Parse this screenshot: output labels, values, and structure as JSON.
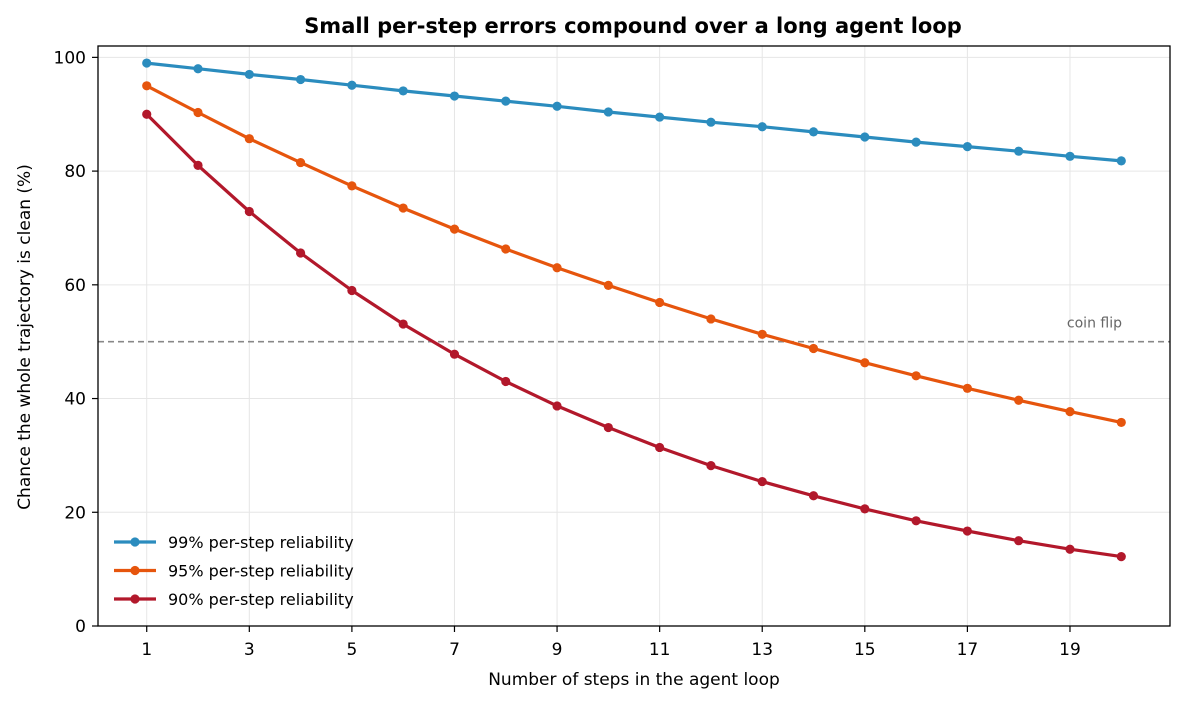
{
  "chart_data": {
    "type": "line",
    "title": "Small per-step errors compound over a long agent loop",
    "xlabel": "Number of steps in the agent loop",
    "ylabel": "Chance the whole trajectory is clean (%)",
    "xlim": [
      0.05,
      20.95
    ],
    "ylim": [
      0,
      102
    ],
    "xticks": [
      1,
      3,
      5,
      7,
      9,
      11,
      13,
      15,
      17,
      19
    ],
    "yticks": [
      0,
      20,
      40,
      60,
      80,
      100
    ],
    "grid": true,
    "legend_position": "lower-left",
    "x": [
      1,
      2,
      3,
      4,
      5,
      6,
      7,
      8,
      9,
      10,
      11,
      12,
      13,
      14,
      15,
      16,
      17,
      18,
      19,
      20
    ],
    "series": [
      {
        "name": "99% per-step reliability",
        "color": "#2b8cbe",
        "values": [
          99.0,
          98.0,
          97.0,
          96.1,
          95.1,
          94.1,
          93.2,
          92.3,
          91.4,
          90.4,
          89.5,
          88.6,
          87.8,
          86.9,
          86.0,
          85.1,
          84.3,
          83.5,
          82.6,
          81.8
        ]
      },
      {
        "name": "95% per-step reliability",
        "color": "#e6550d",
        "values": [
          95.0,
          90.3,
          85.7,
          81.5,
          77.4,
          73.5,
          69.8,
          66.3,
          63.0,
          59.9,
          56.9,
          54.0,
          51.3,
          48.8,
          46.3,
          44.0,
          41.8,
          39.7,
          37.7,
          35.8
        ]
      },
      {
        "name": "90% per-step reliability",
        "color": "#b2182b",
        "values": [
          90.0,
          81.0,
          72.9,
          65.6,
          59.0,
          53.1,
          47.8,
          43.0,
          38.7,
          34.9,
          31.4,
          28.2,
          25.4,
          22.9,
          20.6,
          18.5,
          16.7,
          15.0,
          13.5,
          12.2
        ]
      }
    ],
    "reference_line": {
      "y": 50,
      "label": "coin flip",
      "color": "#888888"
    }
  }
}
